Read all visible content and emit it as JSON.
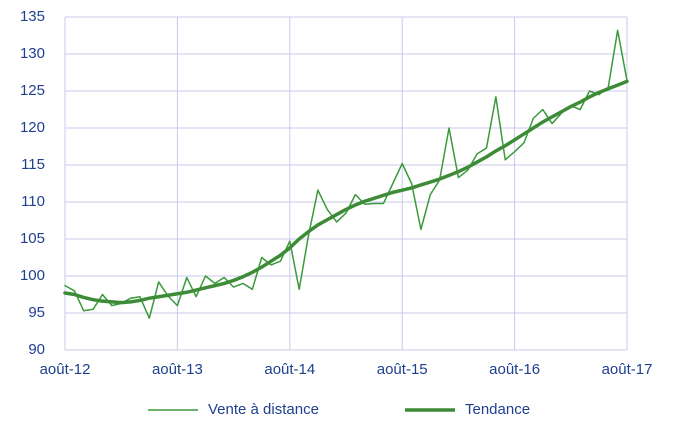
{
  "chart_data": {
    "type": "line",
    "categories": [
      "août-12",
      null,
      null,
      null,
      null,
      null,
      null,
      null,
      null,
      null,
      null,
      null,
      "août-13",
      null,
      null,
      null,
      null,
      null,
      null,
      null,
      null,
      null,
      null,
      null,
      "août-14",
      null,
      null,
      null,
      null,
      null,
      null,
      null,
      null,
      null,
      null,
      null,
      "août-15",
      null,
      null,
      null,
      null,
      null,
      null,
      null,
      null,
      null,
      null,
      null,
      "août-16",
      null,
      null,
      null,
      null,
      null,
      null,
      null,
      null,
      null,
      null,
      null,
      "août-17"
    ],
    "series": [
      {
        "name": "Vente à distance",
        "color": "#3a9a3a",
        "width": 1.5,
        "values": [
          98.7,
          98.0,
          95.3,
          95.5,
          97.5,
          96.0,
          96.3,
          97.0,
          97.2,
          94.3,
          99.2,
          97.3,
          96.0,
          99.8,
          97.2,
          100.0,
          99.0,
          99.8,
          98.5,
          99.0,
          98.2,
          102.5,
          101.5,
          102.0,
          104.7,
          98.2,
          105.5,
          111.6,
          109.0,
          107.3,
          108.5,
          111.0,
          109.7,
          109.8,
          109.8,
          112.5,
          115.2,
          112.5,
          106.3,
          111.0,
          113.0,
          120.0,
          113.3,
          114.3,
          116.5,
          117.3,
          124.2,
          115.7,
          116.8,
          118.0,
          121.3,
          122.5,
          120.6,
          122.0,
          123.0,
          122.5,
          125.0,
          124.5,
          125.5,
          133.2,
          126.4
        ]
      },
      {
        "name": "Tendance",
        "color": "#3d8b37",
        "width": 3.5,
        "values": [
          97.7,
          97.5,
          97.1,
          96.8,
          96.6,
          96.5,
          96.4,
          96.5,
          96.7,
          97.0,
          97.2,
          97.4,
          97.6,
          97.8,
          98.1,
          98.4,
          98.7,
          99.0,
          99.4,
          99.9,
          100.5,
          101.2,
          102.0,
          102.8,
          103.8,
          105.0,
          106.0,
          106.9,
          107.6,
          108.3,
          109.0,
          109.6,
          110.1,
          110.5,
          110.9,
          111.3,
          111.6,
          111.9,
          112.3,
          112.7,
          113.1,
          113.6,
          114.1,
          114.7,
          115.4,
          116.1,
          116.9,
          117.6,
          118.4,
          119.2,
          120.0,
          120.8,
          121.5,
          122.2,
          122.9,
          123.5,
          124.2,
          124.8,
          125.3,
          125.8,
          126.3
        ]
      }
    ],
    "ylim": [
      90,
      135
    ],
    "yticks": [
      90,
      95,
      100,
      105,
      110,
      115,
      120,
      125,
      130,
      135
    ],
    "grid": true,
    "legend": "bottom"
  }
}
